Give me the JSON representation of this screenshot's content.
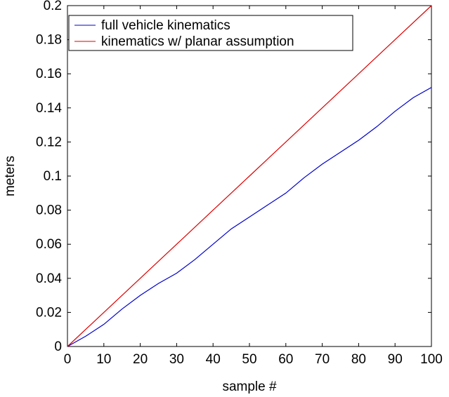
{
  "chart_data": {
    "type": "line",
    "title": "",
    "xlabel": "sample #",
    "ylabel": "meters",
    "xlim": [
      0,
      100
    ],
    "ylim": [
      0,
      0.2
    ],
    "xticks": [
      0,
      10,
      20,
      30,
      40,
      50,
      60,
      70,
      80,
      90,
      100
    ],
    "xtick_labels": [
      "0",
      "10",
      "20",
      "30",
      "40",
      "50",
      "60",
      "70",
      "80",
      "90",
      "100"
    ],
    "yticks": [
      0,
      0.02,
      0.04,
      0.06,
      0.08,
      0.1,
      0.12,
      0.14,
      0.16,
      0.18,
      0.2
    ],
    "ytick_labels": [
      "0",
      "0.02",
      "0.04",
      "0.06",
      "0.08",
      "0.1",
      "0.12",
      "0.14",
      "0.16",
      "0.18",
      "0.2"
    ],
    "grid": false,
    "legend_position": "top-left",
    "series": [
      {
        "name": "full vehicle kinematics",
        "color": "#0000cc",
        "x": [
          0,
          5,
          10,
          15,
          20,
          25,
          30,
          35,
          40,
          45,
          50,
          55,
          60,
          65,
          70,
          75,
          80,
          85,
          90,
          95,
          100
        ],
        "y": [
          0,
          0.006,
          0.013,
          0.022,
          0.03,
          0.037,
          0.043,
          0.051,
          0.06,
          0.069,
          0.076,
          0.083,
          0.09,
          0.099,
          0.107,
          0.114,
          0.121,
          0.129,
          0.138,
          0.146,
          0.152
        ]
      },
      {
        "name": "kinematics w/ planar assumption",
        "color": "#dd0000",
        "x": [
          0,
          10,
          20,
          30,
          40,
          50,
          60,
          70,
          80,
          90,
          100
        ],
        "y": [
          0,
          0.02,
          0.04,
          0.06,
          0.08,
          0.1,
          0.12,
          0.14,
          0.16,
          0.18,
          0.2
        ]
      }
    ]
  }
}
